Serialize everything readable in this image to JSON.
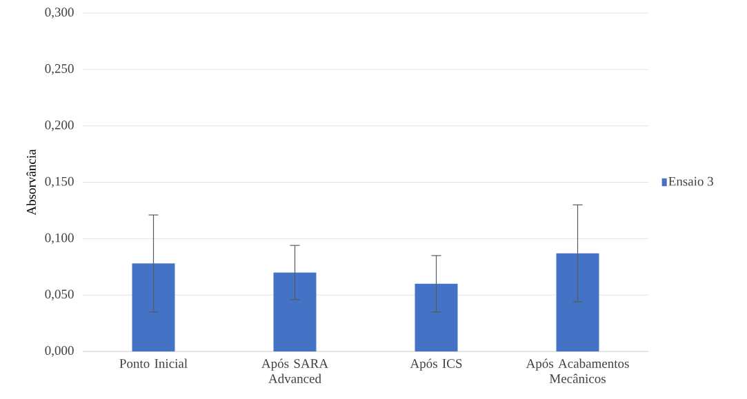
{
  "chart_data": {
    "type": "bar",
    "ylabel": "Absorvância",
    "categories": [
      "Ponto Inicial",
      "Após SARA Advanced",
      "Após ICS",
      "Após Acabamentos Mecânicos"
    ],
    "series": [
      {
        "name": "Ensaio 3",
        "color": "#4472c4",
        "values": [
          0.078,
          0.07,
          0.06,
          0.087
        ],
        "errors": [
          0.043,
          0.024,
          0.025,
          0.043
        ]
      }
    ],
    "ylim": [
      0,
      0.3
    ],
    "yticks": [
      {
        "value": 0,
        "label": "0,000"
      },
      {
        "value": 0.05,
        "label": "0,050"
      },
      {
        "value": 0.1,
        "label": "0,100"
      },
      {
        "value": 0.15,
        "label": "0,150"
      },
      {
        "value": 0.2,
        "label": "0,200"
      },
      {
        "value": 0.25,
        "label": "0,250"
      },
      {
        "value": 0.3,
        "label": "0,300"
      }
    ],
    "grid": "y",
    "legend": "right"
  }
}
